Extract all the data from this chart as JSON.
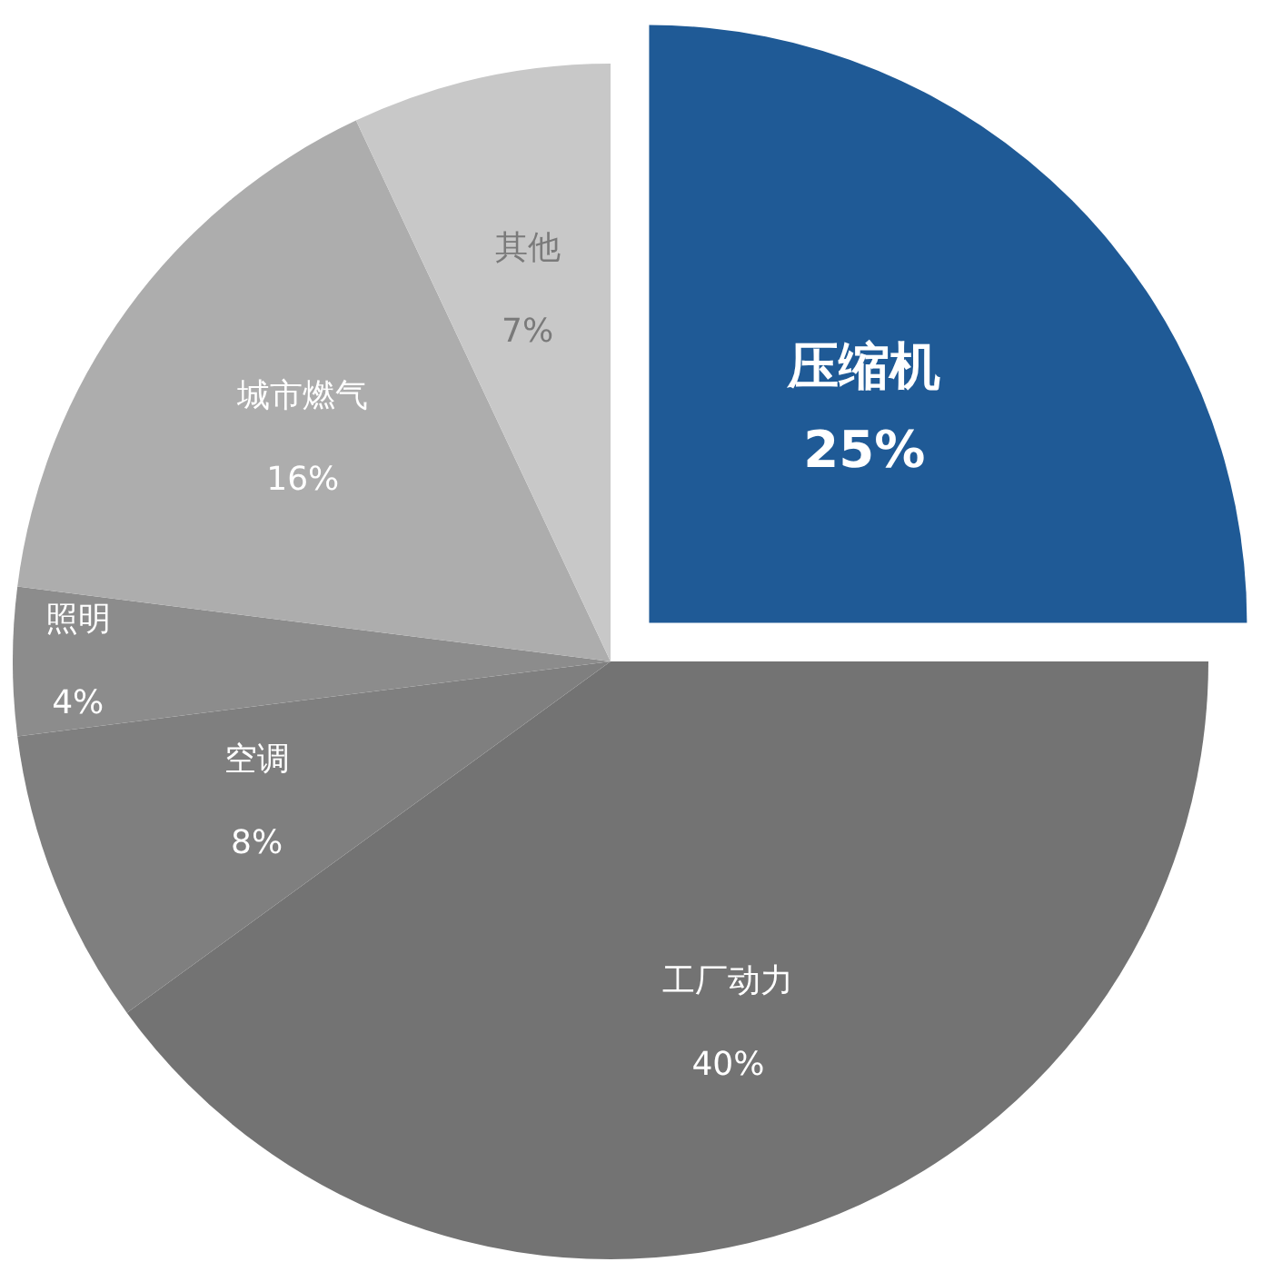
{
  "chart_data": {
    "type": "pie",
    "categories": [
      "压缩机",
      "工厂动力",
      "空调",
      "照明",
      "城市燃气",
      "其他"
    ],
    "values": [
      25,
      40,
      8,
      4,
      16,
      7
    ],
    "colors": [
      "#1f5a96",
      "#737373",
      "#7f7f7f",
      "#8c8c8c",
      "#adadad",
      "#c8c8c8"
    ],
    "value_labels": [
      "25%",
      "40%",
      "8%",
      "4%",
      "16%",
      "7%"
    ],
    "legend": false
  }
}
